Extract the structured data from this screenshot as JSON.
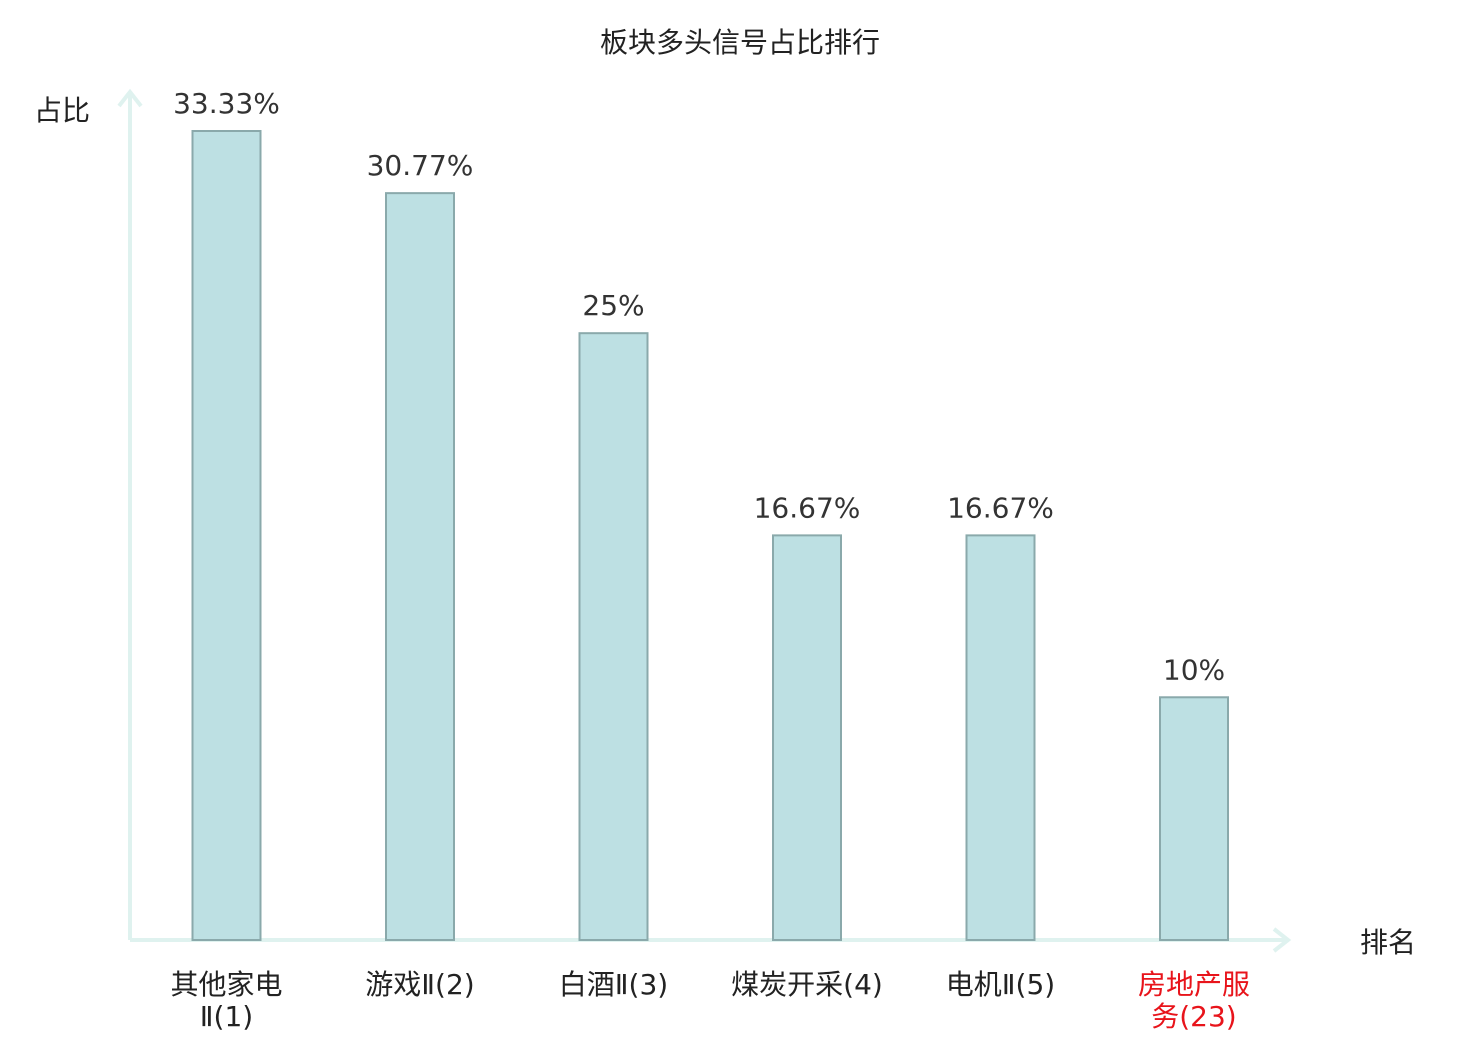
{
  "chart_data": {
    "type": "bar",
    "title": "板块多头信号占比排行",
    "xlabel": "排名",
    "ylabel": "占比",
    "categories": [
      [
        "其他家电",
        "Ⅱ(1)"
      ],
      [
        "游戏Ⅱ(2)"
      ],
      [
        "白酒Ⅱ(3)"
      ],
      [
        "煤炭开采(4)"
      ],
      [
        "电机Ⅱ(5)"
      ],
      [
        "房地产服",
        "务(23)"
      ]
    ],
    "values": [
      33.33,
      30.77,
      25,
      16.67,
      16.67,
      10
    ],
    "value_labels": [
      "33.33%",
      "30.77%",
      "25%",
      "16.67%",
      "16.67%",
      "10%"
    ],
    "highlight_index": 5,
    "ylim": [
      0,
      33.33
    ],
    "grid": false,
    "colors": {
      "bar_fill": "#bde0e3",
      "bar_stroke": "#8aa9ab",
      "axis": "#dff2ef",
      "label": "#222222",
      "highlight_label": "#e8141b"
    }
  }
}
